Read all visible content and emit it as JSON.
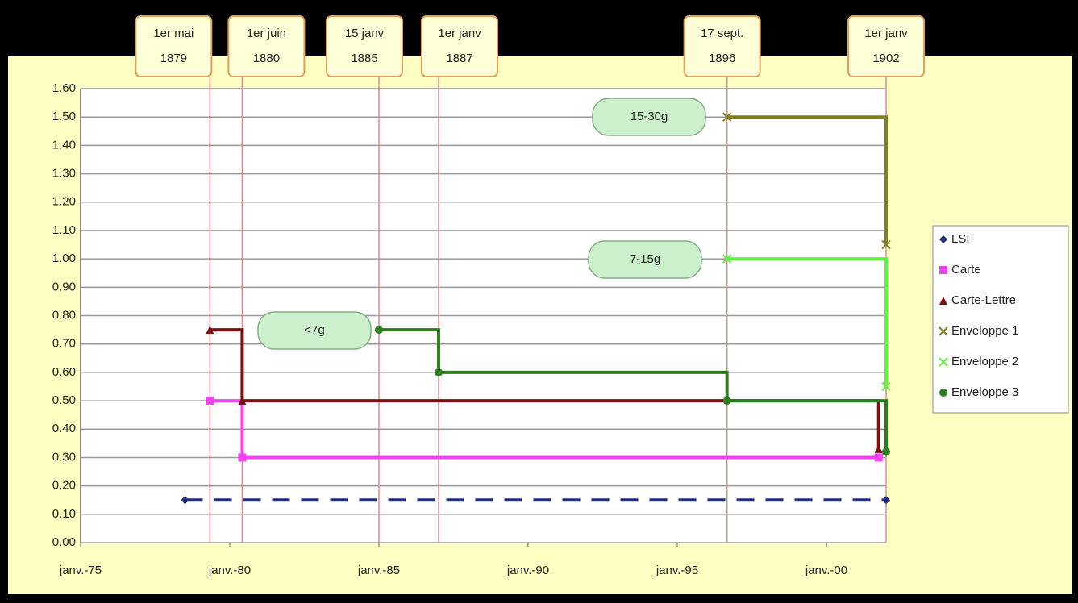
{
  "chart_data": {
    "type": "step",
    "xlim": [
      "1875-01",
      "1902-01"
    ],
    "xticks": [
      {
        "value": "1875-01",
        "label": "janv.-75"
      },
      {
        "value": "1880-01",
        "label": "janv.-80"
      },
      {
        "value": "1885-01",
        "label": "janv.-85"
      },
      {
        "value": "1890-01",
        "label": "janv.-90"
      },
      {
        "value": "1895-01",
        "label": "janv.-95"
      },
      {
        "value": "1900-01",
        "label": "janv.-00"
      }
    ],
    "ylim": [
      0,
      1.6
    ],
    "yticks": [
      {
        "value": 0,
        "label": "0.00"
      },
      {
        "value": 0.1,
        "label": "0.10"
      },
      {
        "value": 0.2,
        "label": "0.20"
      },
      {
        "value": 0.3,
        "label": "0.30"
      },
      {
        "value": 0.4,
        "label": "0.40"
      },
      {
        "value": 0.5,
        "label": "0.50"
      },
      {
        "value": 0.6,
        "label": "0.60"
      },
      {
        "value": 0.7,
        "label": "0.70"
      },
      {
        "value": 0.8,
        "label": "0.80"
      },
      {
        "value": 0.9,
        "label": "0.90"
      },
      {
        "value": 1.0,
        "label": "1.00"
      },
      {
        "value": 1.1,
        "label": "1.10"
      },
      {
        "value": 1.2,
        "label": "1.20"
      },
      {
        "value": 1.3,
        "label": "1.30"
      },
      {
        "value": 1.4,
        "label": "1.40"
      },
      {
        "value": 1.5,
        "label": "1.50"
      },
      {
        "value": 1.6,
        "label": "1.60"
      }
    ],
    "grid": true,
    "legend": "right",
    "series": [
      {
        "name": "LSI",
        "color": "#1f2d7a",
        "dashed": true,
        "x": [
          "1878-07",
          "1902-01"
        ],
        "values": [
          0.15,
          0.15
        ]
      },
      {
        "name": "Carte",
        "color": "#ee44ee",
        "x": [
          "1879-05",
          "1880-06",
          "1901-10"
        ],
        "values": [
          0.5,
          0.3,
          0.3
        ]
      },
      {
        "name": "Carte-Lettre",
        "color": "#7a1010",
        "x": [
          "1879-05",
          "1880-06",
          "1901-10"
        ],
        "values": [
          0.75,
          0.5,
          0.33
        ]
      },
      {
        "name": "Enveloppe 1",
        "color": "#808020",
        "x": [
          "1896-09",
          "1902-01"
        ],
        "values": [
          1.5,
          1.05
        ]
      },
      {
        "name": "Enveloppe 2",
        "color": "#66ee44",
        "x": [
          "1896-09",
          "1902-01"
        ],
        "values": [
          1.0,
          0.55
        ]
      },
      {
        "name": "Enveloppe 3",
        "color": "#2e7d1e",
        "x": [
          "1885-01",
          "1887-01",
          "1896-09",
          "1902-01"
        ],
        "values": [
          0.75,
          0.6,
          0.5,
          0.32
        ]
      }
    ],
    "date_annotations": [
      {
        "date": "1879-05",
        "line1": "1er mai",
        "line2": "1879"
      },
      {
        "date": "1880-06",
        "line1": "1er juin",
        "line2": "1880"
      },
      {
        "date": "1885-01",
        "line1": "15 janv",
        "line2": "1885"
      },
      {
        "date": "1887-01",
        "line1": "1er janv",
        "line2": "1887"
      },
      {
        "date": "1896-09",
        "line1": "17 sept.",
        "line2": "1896"
      },
      {
        "date": "1902-01",
        "line1": "1er janv",
        "line2": "1902"
      }
    ],
    "weight_labels": [
      "15-30g",
      "7-15g",
      "<7g"
    ]
  }
}
